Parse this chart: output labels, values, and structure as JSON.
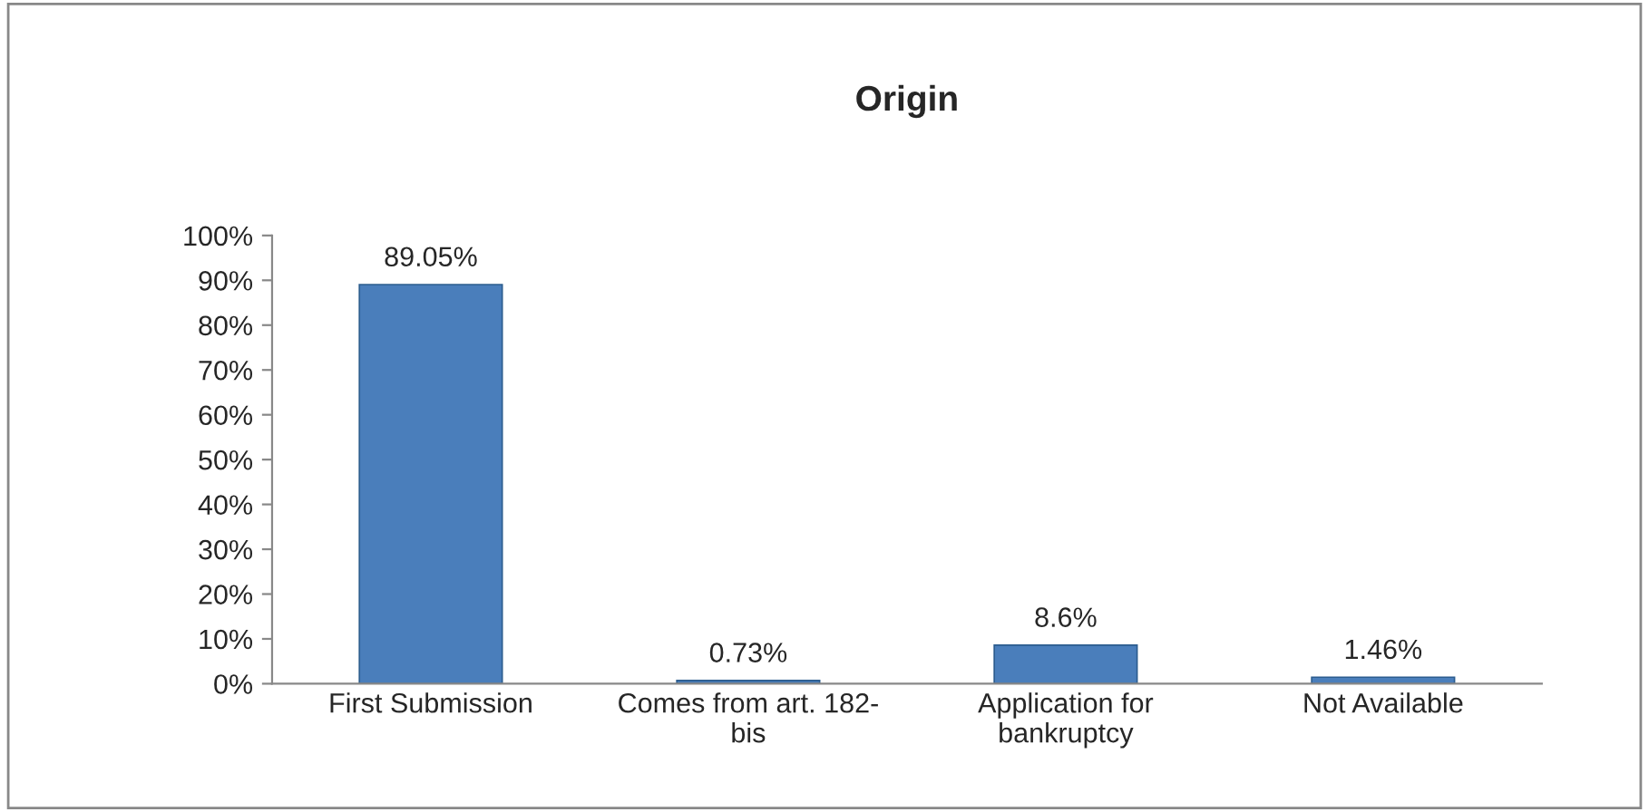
{
  "chart_data": {
    "type": "bar",
    "title": "Origin",
    "categories": [
      "First Submission",
      "Comes from art. 182-\nbis",
      "Application for\nbankruptcy",
      "Not Available"
    ],
    "values": [
      89.05,
      0.73,
      8.6,
      1.46
    ],
    "value_labels": [
      "89.05%",
      "0.73%",
      "8.6%",
      "1.46%"
    ],
    "color": "#4a7ebb",
    "ylim": [
      0,
      100
    ],
    "yticks": [
      {
        "value": 0,
        "label": "0%"
      },
      {
        "value": 10,
        "label": "10%"
      },
      {
        "value": 20,
        "label": "20%"
      },
      {
        "value": 30,
        "label": "30%"
      },
      {
        "value": 40,
        "label": "40%"
      },
      {
        "value": 50,
        "label": "50%"
      },
      {
        "value": 60,
        "label": "60%"
      },
      {
        "value": 70,
        "label": "70%"
      },
      {
        "value": 80,
        "label": "80%"
      },
      {
        "value": 90,
        "label": "90%"
      },
      {
        "value": 100,
        "label": "100%"
      }
    ],
    "grid": false,
    "legend": false
  }
}
